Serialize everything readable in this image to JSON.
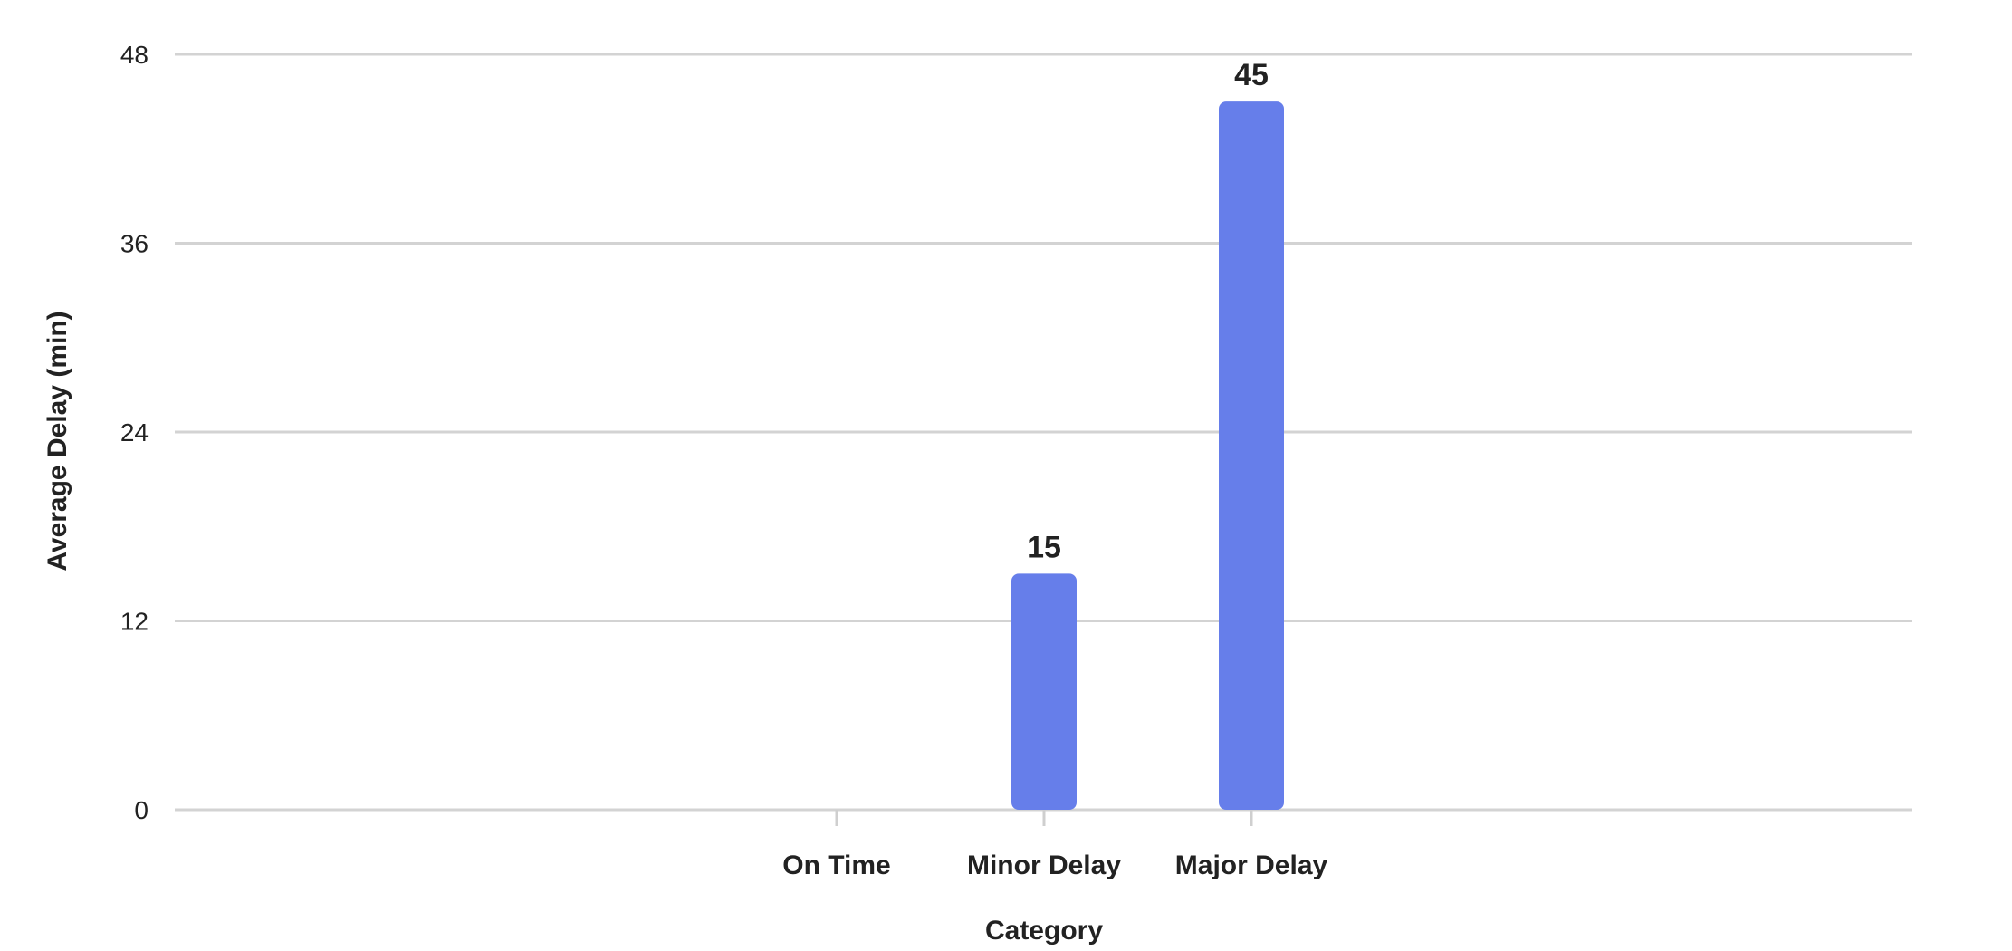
{
  "chart_data": {
    "type": "bar",
    "categories": [
      "On Time",
      "Minor Delay",
      "Major Delay"
    ],
    "values": [
      0,
      15,
      45
    ],
    "xlabel": "Category",
    "ylabel": "Average Delay (min)",
    "ylim": [
      0,
      48
    ],
    "yticks": [
      0,
      12,
      24,
      36,
      48
    ],
    "grid": true,
    "data_labels": true,
    "bar_color": "#667eea"
  }
}
